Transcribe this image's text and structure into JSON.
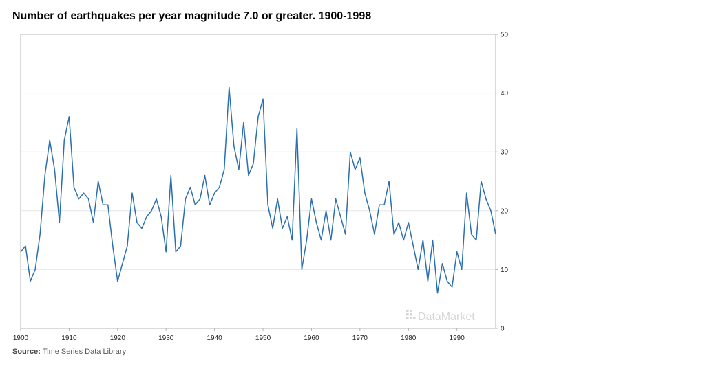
{
  "title": "Number of earthquakes per year magnitude 7.0 or greater. 1900-1998",
  "source": {
    "label": "Source:",
    "text": "Time Series Data Library"
  },
  "watermark": "DataMarket",
  "colors": {
    "line": "#2a6faf",
    "grid": "#e6e6e6",
    "axis": "#b4b4b4",
    "watermark": "#d6d6d6"
  },
  "chart_data": {
    "type": "line",
    "title": "Number of earthquakes per year magnitude 7.0 or greater. 1900-1998",
    "xlabel": "",
    "ylabel": "",
    "xlim": [
      1900,
      1998
    ],
    "ylim": [
      0,
      50
    ],
    "x_ticks": [
      1900,
      1910,
      1920,
      1930,
      1940,
      1950,
      1960,
      1970,
      1980,
      1990
    ],
    "y_ticks": [
      0,
      10,
      20,
      30,
      40,
      50
    ],
    "y_axis_position": "right",
    "grid": true,
    "legend": "none",
    "x": [
      1900,
      1901,
      1902,
      1903,
      1904,
      1905,
      1906,
      1907,
      1908,
      1909,
      1910,
      1911,
      1912,
      1913,
      1914,
      1915,
      1916,
      1917,
      1918,
      1919,
      1920,
      1921,
      1922,
      1923,
      1924,
      1925,
      1926,
      1927,
      1928,
      1929,
      1930,
      1931,
      1932,
      1933,
      1934,
      1935,
      1936,
      1937,
      1938,
      1939,
      1940,
      1941,
      1942,
      1943,
      1944,
      1945,
      1946,
      1947,
      1948,
      1949,
      1950,
      1951,
      1952,
      1953,
      1954,
      1955,
      1956,
      1957,
      1958,
      1959,
      1960,
      1961,
      1962,
      1963,
      1964,
      1965,
      1966,
      1967,
      1968,
      1969,
      1970,
      1971,
      1972,
      1973,
      1974,
      1975,
      1976,
      1977,
      1978,
      1979,
      1980,
      1981,
      1982,
      1983,
      1984,
      1985,
      1986,
      1987,
      1988,
      1989,
      1990,
      1991,
      1992,
      1993,
      1994,
      1995,
      1996,
      1997,
      1998
    ],
    "series": [
      {
        "values": [
          13,
          14,
          8,
          10,
          16,
          26,
          32,
          27,
          18,
          32,
          36,
          24,
          22,
          23,
          22,
          18,
          25,
          21,
          21,
          14,
          8,
          11,
          14,
          23,
          18,
          17,
          19,
          20,
          22,
          19,
          13,
          26,
          13,
          14,
          22,
          24,
          21,
          22,
          26,
          21,
          23,
          24,
          27,
          41,
          31,
          27,
          35,
          26,
          28,
          36,
          39,
          21,
          17,
          22,
          17,
          19,
          15,
          34,
          10,
          15,
          22,
          18,
          15,
          20,
          15,
          22,
          19,
          16,
          30,
          27,
          29,
          23,
          20,
          16,
          21,
          21,
          25,
          16,
          18,
          15,
          18,
          14,
          10,
          15,
          8,
          15,
          6,
          11,
          8,
          7,
          13,
          10,
          23,
          16,
          15,
          25,
          22,
          20,
          16
        ]
      }
    ]
  }
}
